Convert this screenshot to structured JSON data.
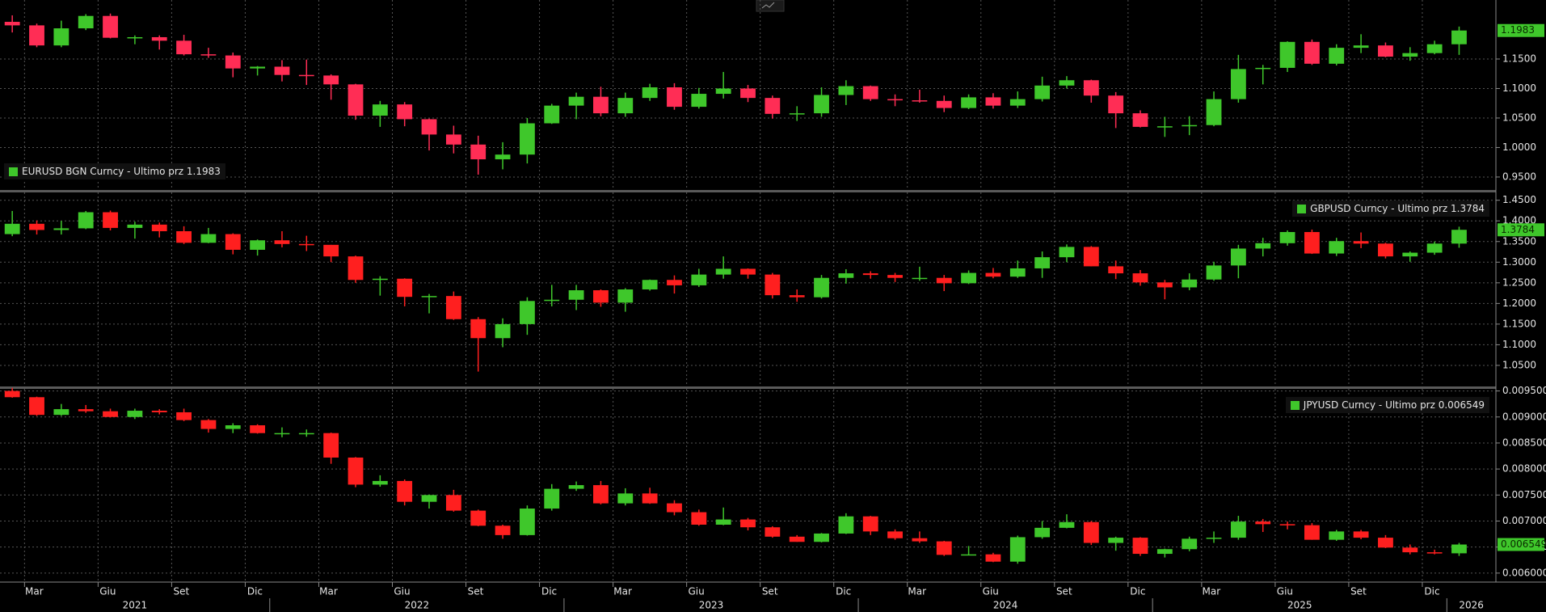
{
  "chart_data": [
    {
      "type": "candlestick",
      "title": "EURUSD BGN Curncy - Ultimo prz 1.1983",
      "legend": "bottom-left",
      "up_color": "#3fc72b",
      "down_color": "#ff2d55",
      "xlim": [
        "2021-02",
        "2026-03"
      ],
      "ylim": [
        0.928,
        1.25
      ],
      "yticks": [
        {
          "value": 0.95,
          "label": "0.9500"
        },
        {
          "value": 1.0,
          "label": "1.0000"
        },
        {
          "value": 1.05,
          "label": "1.0500"
        },
        {
          "value": 1.1,
          "label": "1.1000"
        },
        {
          "value": 1.15,
          "label": "1.1500"
        }
      ],
      "x": [
        "2021-02",
        "2021-03",
        "2021-04",
        "2021-05",
        "2021-06",
        "2021-07",
        "2021-08",
        "2021-09",
        "2021-10",
        "2021-11",
        "2021-12",
        "2022-01",
        "2022-02",
        "2022-03",
        "2022-04",
        "2022-05",
        "2022-06",
        "2022-07",
        "2022-08",
        "2022-09",
        "2022-10",
        "2022-11",
        "2022-12",
        "2023-01",
        "2023-02",
        "2023-03",
        "2023-04",
        "2023-05",
        "2023-06",
        "2023-07",
        "2023-08",
        "2023-09",
        "2023-10",
        "2023-11",
        "2023-12",
        "2024-01",
        "2024-02",
        "2024-03",
        "2024-04",
        "2024-05",
        "2024-06",
        "2024-07",
        "2024-08",
        "2024-09",
        "2024-10",
        "2024-11",
        "2024-12",
        "2025-01",
        "2025-02",
        "2025-03",
        "2025-04",
        "2025-05",
        "2025-06",
        "2025-07",
        "2025-08",
        "2025-09",
        "2025-10",
        "2025-11",
        "2025-12",
        "2026-01"
      ],
      "open": [
        1.213,
        1.207,
        1.173,
        1.202,
        1.223,
        1.186,
        1.187,
        1.181,
        1.158,
        1.156,
        1.134,
        1.137,
        1.123,
        1.122,
        1.107,
        1.054,
        1.073,
        1.048,
        1.022,
        1.005,
        0.98,
        0.988,
        1.041,
        1.071,
        1.086,
        1.058,
        1.084,
        1.102,
        1.069,
        1.091,
        1.1,
        1.084,
        1.057,
        1.058,
        1.089,
        1.104,
        1.082,
        1.08,
        1.079,
        1.067,
        1.085,
        1.071,
        1.082,
        1.105,
        1.114,
        1.088,
        1.058,
        1.035,
        1.036,
        1.038,
        1.082,
        1.133,
        1.135,
        1.179,
        1.142,
        1.169,
        1.173,
        1.154,
        1.16,
        1.175
      ],
      "high": [
        1.224,
        1.21,
        1.215,
        1.226,
        1.227,
        1.19,
        1.19,
        1.191,
        1.169,
        1.161,
        1.138,
        1.148,
        1.149,
        1.124,
        1.108,
        1.079,
        1.077,
        1.049,
        1.037,
        1.02,
        1.009,
        1.05,
        1.074,
        1.093,
        1.103,
        1.093,
        1.108,
        1.109,
        1.101,
        1.128,
        1.106,
        1.088,
        1.07,
        1.102,
        1.114,
        1.105,
        1.09,
        1.098,
        1.088,
        1.09,
        1.092,
        1.095,
        1.12,
        1.121,
        1.115,
        1.094,
        1.063,
        1.052,
        1.053,
        1.095,
        1.157,
        1.14,
        1.18,
        1.183,
        1.175,
        1.192,
        1.178,
        1.17,
        1.181,
        1.205
      ],
      "low": [
        1.195,
        1.17,
        1.17,
        1.199,
        1.185,
        1.175,
        1.166,
        1.156,
        1.152,
        1.119,
        1.122,
        1.112,
        1.106,
        1.081,
        1.047,
        1.035,
        1.036,
        0.995,
        0.99,
        0.954,
        0.963,
        0.973,
        1.04,
        1.048,
        1.053,
        1.052,
        1.079,
        1.064,
        1.066,
        1.083,
        1.077,
        1.049,
        1.045,
        1.052,
        1.072,
        1.079,
        1.07,
        1.076,
        1.06,
        1.065,
        1.066,
        1.067,
        1.078,
        1.1,
        1.076,
        1.033,
        1.034,
        1.018,
        1.021,
        1.036,
        1.076,
        1.107,
        1.128,
        1.14,
        1.139,
        1.16,
        1.153,
        1.147,
        1.158,
        1.157
      ],
      "close": [
        1.207,
        1.173,
        1.202,
        1.223,
        1.186,
        1.187,
        1.181,
        1.158,
        1.156,
        1.134,
        1.137,
        1.123,
        1.122,
        1.107,
        1.054,
        1.073,
        1.048,
        1.022,
        1.005,
        0.98,
        0.988,
        1.041,
        1.071,
        1.086,
        1.058,
        1.084,
        1.102,
        1.069,
        1.091,
        1.1,
        1.084,
        1.057,
        1.058,
        1.089,
        1.104,
        1.082,
        1.08,
        1.079,
        1.067,
        1.085,
        1.071,
        1.082,
        1.105,
        1.114,
        1.088,
        1.058,
        1.035,
        1.036,
        1.038,
        1.082,
        1.133,
        1.135,
        1.179,
        1.142,
        1.169,
        1.173,
        1.154,
        1.16,
        1.175,
        1.1983
      ]
    },
    {
      "type": "candlestick",
      "title": "GBPUSD Curncy - Ultimo prz 1.3784",
      "legend": "top-right",
      "up_color": "#3fc72b",
      "down_color": "#ff1f1f",
      "xlim": [
        "2021-02",
        "2026-03"
      ],
      "ylim": [
        0.999,
        1.469
      ],
      "yticks": [
        {
          "value": 1.05,
          "label": "1.0500"
        },
        {
          "value": 1.1,
          "label": "1.1000"
        },
        {
          "value": 1.15,
          "label": "1.1500"
        },
        {
          "value": 1.2,
          "label": "1.2000"
        },
        {
          "value": 1.25,
          "label": "1.2500"
        },
        {
          "value": 1.3,
          "label": "1.3000"
        },
        {
          "value": 1.35,
          "label": "1.3500"
        },
        {
          "value": 1.4,
          "label": "1.4000"
        },
        {
          "value": 1.45,
          "label": "1.4500"
        }
      ],
      "x": [
        "2021-02",
        "2021-03",
        "2021-04",
        "2021-05",
        "2021-06",
        "2021-07",
        "2021-08",
        "2021-09",
        "2021-10",
        "2021-11",
        "2021-12",
        "2022-01",
        "2022-02",
        "2022-03",
        "2022-04",
        "2022-05",
        "2022-06",
        "2022-07",
        "2022-08",
        "2022-09",
        "2022-10",
        "2022-11",
        "2022-12",
        "2023-01",
        "2023-02",
        "2023-03",
        "2023-04",
        "2023-05",
        "2023-06",
        "2023-07",
        "2023-08",
        "2023-09",
        "2023-10",
        "2023-11",
        "2023-12",
        "2024-01",
        "2024-02",
        "2024-03",
        "2024-04",
        "2024-05",
        "2024-06",
        "2024-07",
        "2024-08",
        "2024-09",
        "2024-10",
        "2024-11",
        "2024-12",
        "2025-01",
        "2025-02",
        "2025-03",
        "2025-04",
        "2025-05",
        "2025-06",
        "2025-07",
        "2025-08",
        "2025-09",
        "2025-10",
        "2025-11",
        "2025-12",
        "2026-01"
      ],
      "open": [
        1.368,
        1.393,
        1.378,
        1.382,
        1.421,
        1.383,
        1.391,
        1.375,
        1.347,
        1.368,
        1.33,
        1.353,
        1.344,
        1.342,
        1.314,
        1.257,
        1.26,
        1.216,
        1.218,
        1.162,
        1.116,
        1.15,
        1.206,
        1.209,
        1.232,
        1.202,
        1.234,
        1.257,
        1.244,
        1.27,
        1.284,
        1.27,
        1.22,
        1.215,
        1.262,
        1.273,
        1.269,
        1.262,
        1.262,
        1.249,
        1.274,
        1.265,
        1.285,
        1.312,
        1.337,
        1.29,
        1.273,
        1.251,
        1.239,
        1.258,
        1.292,
        1.333,
        1.346,
        1.373,
        1.321,
        1.351,
        1.345,
        1.314,
        1.323,
        1.345
      ],
      "high": [
        1.424,
        1.401,
        1.4,
        1.424,
        1.425,
        1.398,
        1.396,
        1.387,
        1.383,
        1.37,
        1.355,
        1.375,
        1.364,
        1.342,
        1.316,
        1.266,
        1.261,
        1.223,
        1.229,
        1.167,
        1.164,
        1.215,
        1.245,
        1.245,
        1.234,
        1.237,
        1.258,
        1.268,
        1.284,
        1.314,
        1.285,
        1.274,
        1.234,
        1.269,
        1.283,
        1.278,
        1.274,
        1.289,
        1.269,
        1.28,
        1.286,
        1.304,
        1.326,
        1.343,
        1.339,
        1.304,
        1.281,
        1.257,
        1.273,
        1.301,
        1.342,
        1.359,
        1.377,
        1.379,
        1.359,
        1.372,
        1.347,
        1.326,
        1.35,
        1.386
      ],
      "low": [
        1.363,
        1.367,
        1.367,
        1.38,
        1.377,
        1.357,
        1.36,
        1.344,
        1.346,
        1.319,
        1.316,
        1.336,
        1.327,
        1.3,
        1.25,
        1.219,
        1.193,
        1.176,
        1.16,
        1.035,
        1.094,
        1.124,
        1.193,
        1.184,
        1.192,
        1.18,
        1.231,
        1.224,
        1.24,
        1.26,
        1.26,
        1.212,
        1.204,
        1.212,
        1.248,
        1.26,
        1.252,
        1.255,
        1.23,
        1.247,
        1.261,
        1.262,
        1.262,
        1.3,
        1.29,
        1.259,
        1.243,
        1.21,
        1.232,
        1.255,
        1.261,
        1.314,
        1.34,
        1.32,
        1.315,
        1.334,
        1.309,
        1.301,
        1.318,
        1.335
      ],
      "close": [
        1.393,
        1.378,
        1.382,
        1.421,
        1.383,
        1.391,
        1.375,
        1.347,
        1.368,
        1.33,
        1.353,
        1.344,
        1.342,
        1.314,
        1.257,
        1.26,
        1.216,
        1.218,
        1.162,
        1.116,
        1.15,
        1.206,
        1.209,
        1.232,
        1.202,
        1.234,
        1.257,
        1.244,
        1.27,
        1.284,
        1.27,
        1.22,
        1.215,
        1.262,
        1.273,
        1.269,
        1.262,
        1.262,
        1.249,
        1.274,
        1.265,
        1.285,
        1.312,
        1.337,
        1.29,
        1.273,
        1.251,
        1.239,
        1.258,
        1.292,
        1.333,
        1.346,
        1.373,
        1.321,
        1.351,
        1.345,
        1.314,
        1.323,
        1.345,
        1.3784
      ]
    },
    {
      "type": "candlestick",
      "title": "JPYUSD Curncy - Ultimo prz 0.006549",
      "legend": "top-right",
      "up_color": "#3fc72b",
      "down_color": "#ff1f1f",
      "xlim": [
        "2021-02",
        "2026-03"
      ],
      "ylim": [
        0.005827,
        0.00954
      ],
      "yticks": [
        {
          "value": 0.006,
          "label": "0.006000"
        },
        {
          "value": 0.0065,
          "label": "0.006500"
        },
        {
          "value": 0.007,
          "label": "0.007000"
        },
        {
          "value": 0.0075,
          "label": "0.007500"
        },
        {
          "value": 0.008,
          "label": "0.008000"
        },
        {
          "value": 0.0085,
          "label": "0.008500"
        },
        {
          "value": 0.009,
          "label": "0.009000"
        },
        {
          "value": 0.0095,
          "label": "0.009500"
        }
      ],
      "xticks": [
        {
          "value": "2021-03",
          "label": "Mar"
        },
        {
          "value": "2021-06",
          "label": "Giu"
        },
        {
          "value": "2021-09",
          "label": "Set"
        },
        {
          "value": "2021-12",
          "label": "Dic"
        },
        {
          "value": "2022-03",
          "label": "Mar"
        },
        {
          "value": "2022-06",
          "label": "Giu"
        },
        {
          "value": "2022-09",
          "label": "Set"
        },
        {
          "value": "2022-12",
          "label": "Dic"
        },
        {
          "value": "2023-03",
          "label": "Mar"
        },
        {
          "value": "2023-06",
          "label": "Giu"
        },
        {
          "value": "2023-09",
          "label": "Set"
        },
        {
          "value": "2023-12",
          "label": "Dic"
        },
        {
          "value": "2024-03",
          "label": "Mar"
        },
        {
          "value": "2024-06",
          "label": "Giu"
        },
        {
          "value": "2024-09",
          "label": "Set"
        },
        {
          "value": "2024-12",
          "label": "Dic"
        },
        {
          "value": "2025-03",
          "label": "Mar"
        },
        {
          "value": "2025-06",
          "label": "Giu"
        },
        {
          "value": "2025-09",
          "label": "Set"
        },
        {
          "value": "2025-12",
          "label": "Dic"
        }
      ],
      "years": [
        2021,
        2022,
        2023,
        2024,
        2025,
        2026
      ],
      "x": [
        "2021-02",
        "2021-03",
        "2021-04",
        "2021-05",
        "2021-06",
        "2021-07",
        "2021-08",
        "2021-09",
        "2021-10",
        "2021-11",
        "2021-12",
        "2022-01",
        "2022-02",
        "2022-03",
        "2022-04",
        "2022-05",
        "2022-06",
        "2022-07",
        "2022-08",
        "2022-09",
        "2022-10",
        "2022-11",
        "2022-12",
        "2023-01",
        "2023-02",
        "2023-03",
        "2023-04",
        "2023-05",
        "2023-06",
        "2023-07",
        "2023-08",
        "2023-09",
        "2023-10",
        "2023-11",
        "2023-12",
        "2024-01",
        "2024-02",
        "2024-03",
        "2024-04",
        "2024-05",
        "2024-06",
        "2024-07",
        "2024-08",
        "2024-09",
        "2024-10",
        "2024-11",
        "2024-12",
        "2025-01",
        "2025-02",
        "2025-03",
        "2025-04",
        "2025-05",
        "2025-06",
        "2025-07",
        "2025-08",
        "2025-09",
        "2025-10",
        "2025-11",
        "2025-12",
        "2026-01"
      ],
      "open": [
        0.0095,
        0.00938,
        0.00904,
        0.00915,
        0.00911,
        0.009,
        0.00912,
        0.00909,
        0.00894,
        0.00877,
        0.00884,
        0.00869,
        0.00869,
        0.00869,
        0.00822,
        0.0077,
        0.00777,
        0.00737,
        0.0075,
        0.0072,
        0.00691,
        0.00673,
        0.00724,
        0.00762,
        0.00769,
        0.00734,
        0.00753,
        0.00734,
        0.00717,
        0.00693,
        0.00703,
        0.00688,
        0.0067,
        0.0066,
        0.00676,
        0.00709,
        0.0068,
        0.00667,
        0.00661,
        0.00635,
        0.00636,
        0.00622,
        0.00669,
        0.00687,
        0.00698,
        0.00658,
        0.00668,
        0.00637,
        0.00646,
        0.00666,
        0.00668,
        0.00699,
        0.00694,
        0.00692,
        0.00664,
        0.0068,
        0.00668,
        0.00649,
        0.0064,
        0.00638
      ],
      "high": [
        0.00956,
        0.00939,
        0.00925,
        0.00923,
        0.00916,
        0.00916,
        0.00915,
        0.00916,
        0.00896,
        0.00888,
        0.00886,
        0.0088,
        0.00876,
        0.0087,
        0.00823,
        0.00788,
        0.0078,
        0.00751,
        0.0076,
        0.00722,
        0.00693,
        0.0073,
        0.00771,
        0.00776,
        0.00777,
        0.00763,
        0.00764,
        0.0074,
        0.00722,
        0.00726,
        0.00706,
        0.0069,
        0.00673,
        0.00677,
        0.00715,
        0.0071,
        0.00684,
        0.0068,
        0.00662,
        0.00652,
        0.00639,
        0.00672,
        0.007,
        0.00713,
        0.007,
        0.0067,
        0.00669,
        0.00647,
        0.0067,
        0.0068,
        0.0071,
        0.00704,
        0.00699,
        0.00696,
        0.00683,
        0.00683,
        0.00673,
        0.00655,
        0.00645,
        0.00658
      ],
      "low": [
        0.00937,
        0.00902,
        0.00902,
        0.00908,
        0.00899,
        0.00896,
        0.00905,
        0.00892,
        0.0087,
        0.00869,
        0.00868,
        0.00861,
        0.00862,
        0.0081,
        0.00765,
        0.00766,
        0.0073,
        0.00724,
        0.00718,
        0.0069,
        0.00666,
        0.00672,
        0.0072,
        0.00758,
        0.00732,
        0.0073,
        0.00733,
        0.00711,
        0.00691,
        0.00692,
        0.00682,
        0.00668,
        0.0066,
        0.00659,
        0.00675,
        0.00673,
        0.00664,
        0.00658,
        0.00633,
        0.00634,
        0.00621,
        0.00618,
        0.00666,
        0.00686,
        0.00654,
        0.00643,
        0.00633,
        0.0063,
        0.00642,
        0.00658,
        0.00664,
        0.00679,
        0.00684,
        0.00664,
        0.00662,
        0.00665,
        0.00648,
        0.00636,
        0.00636,
        0.00633
      ],
      "close": [
        0.00938,
        0.00904,
        0.00915,
        0.00911,
        0.009,
        0.00912,
        0.00909,
        0.00894,
        0.00877,
        0.00884,
        0.00869,
        0.00869,
        0.00869,
        0.00822,
        0.0077,
        0.00777,
        0.00737,
        0.0075,
        0.0072,
        0.00691,
        0.00673,
        0.00724,
        0.00762,
        0.00769,
        0.00734,
        0.00753,
        0.00734,
        0.00717,
        0.00693,
        0.00703,
        0.00688,
        0.0067,
        0.0066,
        0.00676,
        0.00709,
        0.0068,
        0.00667,
        0.00661,
        0.00635,
        0.00636,
        0.00622,
        0.00669,
        0.00687,
        0.00698,
        0.00658,
        0.00668,
        0.00637,
        0.00646,
        0.00666,
        0.00668,
        0.00699,
        0.00694,
        0.00692,
        0.00664,
        0.0068,
        0.00668,
        0.00649,
        0.0064,
        0.00638,
        0.006549
      ]
    }
  ]
}
